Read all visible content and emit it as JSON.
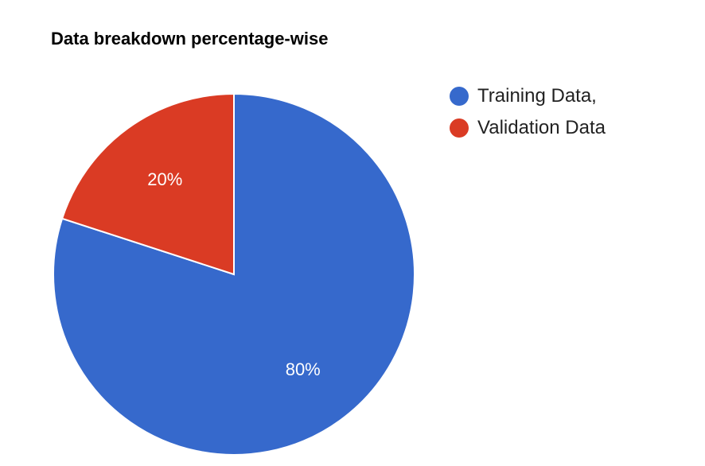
{
  "chart_data": {
    "type": "pie",
    "title": "Data breakdown percentage-wise",
    "slices": [
      {
        "label": "Training Data,",
        "value": 80,
        "value_label": "80%",
        "color": "#3669CC"
      },
      {
        "label": "Validation Data",
        "value": 20,
        "value_label": "20%",
        "color": "#DA3B24"
      }
    ],
    "legend_position": "right",
    "start_angle": "top, clockwise"
  }
}
